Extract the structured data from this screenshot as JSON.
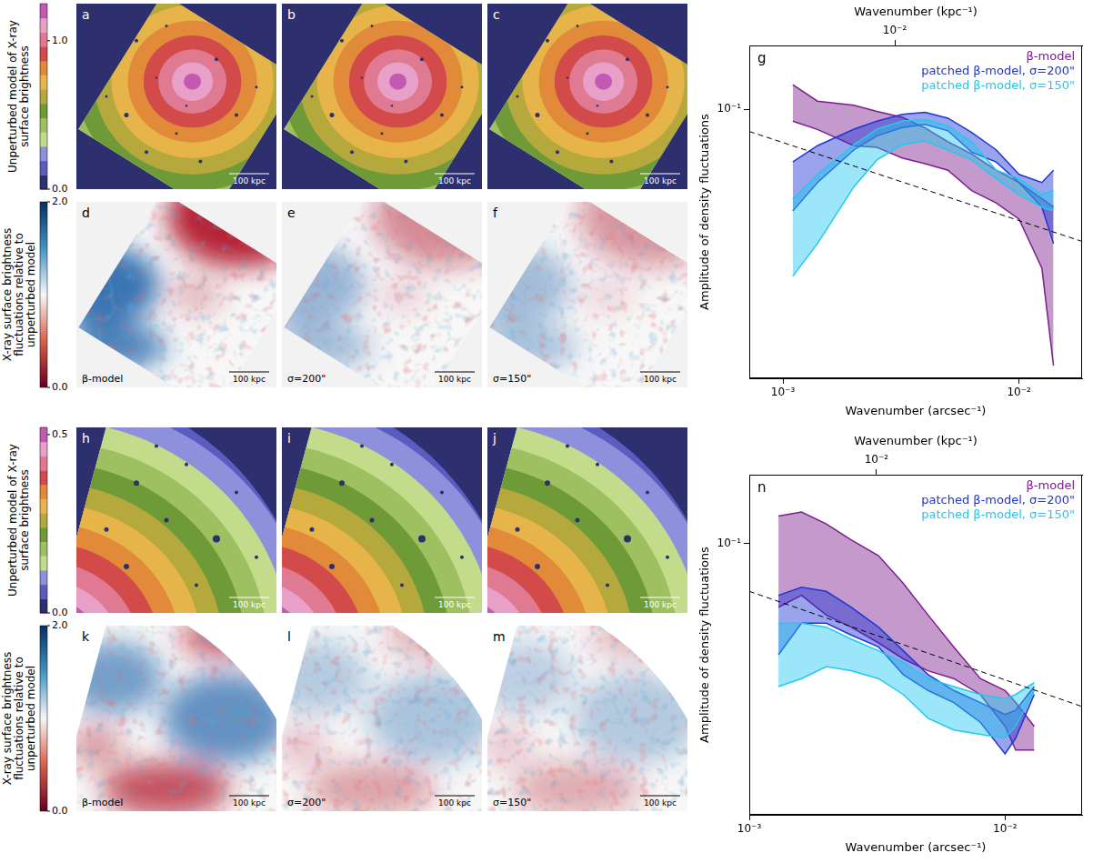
{
  "chart_data": [
    {
      "type": "line",
      "panel_letter": "g",
      "x_label": "Wavenumber (arcsec⁻¹)",
      "x2_label": "Wavenumber (kpc⁻¹)",
      "y_label": "Amplitude of density fluctuations",
      "log": true,
      "grid": false,
      "legend": "upper right",
      "xlim": [
        0.00072,
        0.0185
      ],
      "xticks": [
        {
          "value": 0.001,
          "label": "10⁻³"
        },
        {
          "value": 0.01,
          "label": "10⁻²"
        }
      ],
      "x2lim": [
        0.00242,
        0.0621
      ],
      "x2ticks": [
        {
          "value": 0.01,
          "label": "10⁻²"
        }
      ],
      "ylim": [
        0.015,
        0.157
      ],
      "yticks": [
        {
          "value": 0.1,
          "label": "10⁻¹"
        }
      ],
      "x": [
        0.0011,
        0.0014,
        0.002,
        0.0025,
        0.0032,
        0.004,
        0.005,
        0.0063,
        0.008,
        0.01,
        0.0125,
        0.014
      ],
      "series": [
        {
          "name": "β-model",
          "color": "#7b1f8c",
          "lower": [
            0.092,
            0.0868,
            0.0774,
            0.0765,
            0.071,
            0.0682,
            0.0651,
            0.0564,
            0.0517,
            0.0461,
            0.0326,
            0.0164
          ],
          "upper": [
            0.119,
            0.106,
            0.103,
            0.0986,
            0.0946,
            0.0878,
            0.0796,
            0.073,
            0.0651,
            0.0597,
            0.0532,
            0.0502
          ]
        },
        {
          "name": "patched β-model, σ=200\"",
          "color": "#1f35d6",
          "lower": [
            0.0488,
            0.0597,
            0.0752,
            0.083,
            0.088,
            0.09,
            0.086,
            0.074,
            0.069,
            0.0597,
            0.0502,
            0.0388
          ],
          "upper": [
            0.069,
            0.0774,
            0.087,
            0.092,
            0.0965,
            0.098,
            0.094,
            0.085,
            0.0752,
            0.0632,
            0.0597,
            0.0651
          ]
        },
        {
          "name": "patched β-model, σ=150\"",
          "color": "#22c8f0",
          "lower": [
            0.0308,
            0.0388,
            0.058,
            0.07,
            0.078,
            0.08,
            0.075,
            0.07,
            0.0614,
            0.0548,
            0.0502,
            0.0488
          ],
          "upper": [
            0.0532,
            0.0632,
            0.078,
            0.087,
            0.092,
            0.093,
            0.089,
            0.0796,
            0.0651,
            0.0614,
            0.0548,
            0.0564
          ]
        }
      ],
      "power_law": {
        "x": [
          0.00072,
          0.0185
        ],
        "values": [
          0.0856,
          0.0394
        ],
        "color": "#000000",
        "line_style": "dashed"
      }
    },
    {
      "type": "line",
      "panel_letter": "n",
      "x_label": "Wavenumber (arcsec⁻¹)",
      "x2_label": "Wavenumber (kpc⁻¹)",
      "y_label": "Amplitude of density fluctuations",
      "log": true,
      "grid": false,
      "legend": "upper right",
      "xlim": [
        0.001,
        0.02
      ],
      "xticks": [
        {
          "value": 0.001,
          "label": "10⁻³"
        },
        {
          "value": 0.01,
          "label": "10⁻²"
        }
      ],
      "x2lim": [
        0.00318,
        0.0637
      ],
      "x2ticks": [
        {
          "value": 0.01,
          "label": "10⁻²"
        }
      ],
      "ylim": [
        0.014,
        0.165
      ],
      "yticks": [
        {
          "value": 0.1,
          "label": "10⁻¹"
        }
      ],
      "x": [
        0.0013,
        0.0016,
        0.002,
        0.0025,
        0.0032,
        0.004,
        0.005,
        0.0063,
        0.008,
        0.01,
        0.011,
        0.013
      ],
      "series": [
        {
          "name": "β-model",
          "color": "#7b1f8c",
          "lower": [
            0.0631,
            0.0688,
            0.0596,
            0.0546,
            0.0487,
            0.0434,
            0.0398,
            0.0376,
            0.0335,
            0.0266,
            0.0224,
            0.0224
          ],
          "upper": [
            0.1223,
            0.1259,
            0.1155,
            0.1029,
            0.0917,
            0.075,
            0.0596,
            0.0473,
            0.0376,
            0.0345,
            0.0316,
            0.0266
          ]
        },
        {
          "name": "patched β-model, σ=200\"",
          "color": "#1f35d6",
          "lower": [
            0.0447,
            0.0562,
            0.0562,
            0.0516,
            0.0473,
            0.0387,
            0.0345,
            0.0316,
            0.0274,
            0.0218,
            0.0244,
            0.0335
          ],
          "upper": [
            0.0688,
            0.0729,
            0.0708,
            0.0631,
            0.0546,
            0.046,
            0.0387,
            0.0345,
            0.0316,
            0.029,
            0.0299,
            0.0355
          ]
        },
        {
          "name": "patched β-model, σ=150\"",
          "color": "#22c8f0",
          "lower": [
            0.0355,
            0.0376,
            0.041,
            0.0398,
            0.0376,
            0.0335,
            0.0282,
            0.0259,
            0.0251,
            0.0244,
            0.0266,
            0.0345
          ],
          "upper": [
            0.0562,
            0.0562,
            0.0546,
            0.0501,
            0.046,
            0.0422,
            0.0376,
            0.0355,
            0.0335,
            0.0325,
            0.0335,
            0.0365
          ]
        }
      ],
      "power_law": {
        "x": [
          0.001,
          0.02
        ],
        "values": [
          0.0708,
          0.0307
        ],
        "color": "#000000",
        "line_style": "dashed"
      }
    }
  ],
  "image_panels": {
    "scale_bar": "100 kpc",
    "rows": [
      {
        "label": "Unperturbed model of X-ray surface brightness",
        "type": "model",
        "colorbar": {
          "range": [
            0,
            1.25
          ],
          "ticks": [
            {
              "value": 0,
              "label": "0.0"
            },
            {
              "value": 1,
              "label": "1.0"
            }
          ]
        },
        "panels": [
          {
            "letter": "a"
          },
          {
            "letter": "b"
          },
          {
            "letter": "c"
          }
        ]
      },
      {
        "label": "X-ray surface brightness fluctuations relative to unperturbed model",
        "type": "fluctuations",
        "colorbar": {
          "range": [
            0,
            2
          ],
          "ticks": [
            {
              "value": 0,
              "label": "0.0"
            },
            {
              "value": 2,
              "label": "2.0"
            }
          ]
        },
        "panels": [
          {
            "letter": "d",
            "label": "β-model"
          },
          {
            "letter": "e",
            "label": "σ=200\""
          },
          {
            "letter": "f",
            "label": "σ=150\""
          }
        ]
      },
      {
        "label": "Unperturbed model of X-ray surface brightness",
        "type": "model",
        "colorbar": {
          "range": [
            0,
            0.52
          ],
          "ticks": [
            {
              "value": 0,
              "label": "0.0"
            },
            {
              "value": 0.5,
              "label": "0.5"
            }
          ]
        },
        "panels": [
          {
            "letter": "h"
          },
          {
            "letter": "i"
          },
          {
            "letter": "j"
          }
        ]
      },
      {
        "label": "X-ray surface brightness fluctuations relative to unperturbed model",
        "type": "fluctuations",
        "colorbar": {
          "range": [
            0,
            2
          ],
          "ticks": [
            {
              "value": 0,
              "label": "0.0"
            },
            {
              "value": 2,
              "label": "2.0"
            }
          ]
        },
        "panels": [
          {
            "letter": "k",
            "label": "β-model"
          },
          {
            "letter": "l",
            "label": "σ=200\""
          },
          {
            "letter": "m",
            "label": "σ=150\""
          }
        ]
      }
    ]
  }
}
